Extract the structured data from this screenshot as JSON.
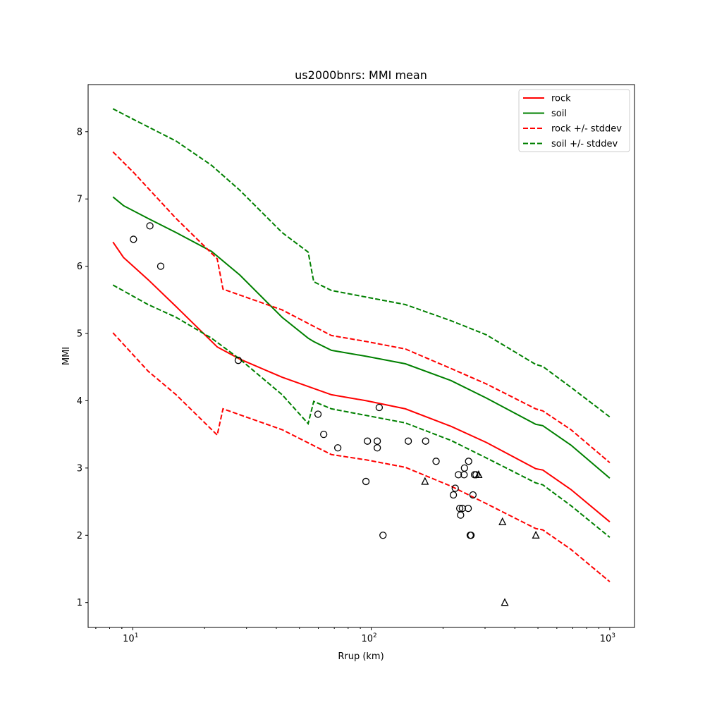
{
  "chart_data": {
    "type": "line",
    "title": "us2000bnrs: MMI mean",
    "xlabel": "Rrup (km)",
    "ylabel": "MMI",
    "xscale": "log",
    "xlim": [
      6.5,
      1270
    ],
    "ylim": [
      0.63,
      8.7
    ],
    "xticks": [
      {
        "value": 10,
        "base": "10",
        "exp": "1"
      },
      {
        "value": 100,
        "base": "10",
        "exp": "2"
      },
      {
        "value": 1000,
        "base": "10",
        "exp": "3"
      }
    ],
    "yticks": [
      1,
      2,
      3,
      4,
      5,
      6,
      7,
      8
    ],
    "legend_position": "top-right",
    "series": [
      {
        "name": "rock",
        "color": "#ff0000",
        "style": "solid",
        "x": [
          8.26,
          9.15,
          11.6,
          15.2,
          22.6,
          28.1,
          42.3,
          68.1,
          95.7,
          139,
          216,
          304,
          489,
          524,
          688,
          1000
        ],
        "y": [
          6.36,
          6.13,
          5.8,
          5.4,
          4.8,
          4.62,
          4.35,
          4.09,
          4.0,
          3.88,
          3.62,
          3.38,
          2.99,
          2.97,
          2.68,
          2.2
        ]
      },
      {
        "name": "soil",
        "color": "#008000",
        "style": "solid",
        "x": [
          8.26,
          9.15,
          11.6,
          15.2,
          21.4,
          28.1,
          42.3,
          54.4,
          57.4,
          68.1,
          95.7,
          139,
          216,
          304,
          489,
          524,
          688,
          1000
        ],
        "y": [
          7.03,
          6.9,
          6.71,
          6.5,
          6.22,
          5.87,
          5.24,
          4.93,
          4.88,
          4.75,
          4.66,
          4.55,
          4.3,
          4.04,
          3.65,
          3.63,
          3.34,
          2.85
        ]
      },
      {
        "name": "rock +/- stddev",
        "color": "#ff0000",
        "style": "dashed",
        "x": [
          8.26,
          10.1,
          15.2,
          22.6,
          23.9,
          42.3,
          68.1,
          95.7,
          139,
          216,
          304,
          489,
          524,
          688,
          1000
        ],
        "y": [
          7.7,
          7.39,
          6.71,
          6.11,
          5.66,
          5.35,
          4.97,
          4.88,
          4.77,
          4.48,
          4.25,
          3.88,
          3.85,
          3.57,
          3.08
        ]
      },
      {
        "name": "rock - stddev",
        "color": "#ff0000",
        "style": "dashed",
        "legend": false,
        "x": [
          8.26,
          11.6,
          15.2,
          22.6,
          23.9,
          42.3,
          68.1,
          95.7,
          139,
          216,
          304,
          489,
          524,
          688,
          1000
        ],
        "y": [
          5.01,
          4.44,
          4.09,
          3.49,
          3.88,
          3.57,
          3.2,
          3.12,
          3.01,
          2.73,
          2.47,
          2.1,
          2.08,
          1.79,
          1.31
        ]
      },
      {
        "name": "soil +/- stddev",
        "color": "#008000",
        "style": "dashed",
        "x": [
          8.26,
          10.1,
          15.2,
          21.4,
          28.1,
          42.3,
          54.4,
          57.4,
          68.1,
          139,
          216,
          304,
          489,
          524,
          688,
          1000
        ],
        "y": [
          8.34,
          8.18,
          7.86,
          7.5,
          7.13,
          6.5,
          6.21,
          5.77,
          5.64,
          5.43,
          5.19,
          4.98,
          4.54,
          4.51,
          4.2,
          3.76
        ]
      },
      {
        "name": "soil - stddev",
        "color": "#008000",
        "style": "dashed",
        "legend": false,
        "x": [
          8.26,
          11.6,
          15.2,
          21.4,
          28.1,
          42.3,
          54.4,
          57.4,
          68.1,
          95.7,
          139,
          216,
          304,
          489,
          524,
          688,
          1000
        ],
        "y": [
          5.72,
          5.43,
          5.24,
          4.93,
          4.62,
          4.09,
          3.66,
          3.99,
          3.88,
          3.78,
          3.67,
          3.41,
          3.15,
          2.78,
          2.75,
          2.44,
          1.97
        ]
      }
    ],
    "scatter_circles": {
      "x": [
        10.07,
        11.8,
        13.1,
        27.7,
        59.8,
        63.2,
        72.4,
        108,
        96.4,
        106,
        106,
        143,
        169,
        95,
        112,
        187,
        256,
        246,
        232,
        245,
        271,
        275,
        225,
        221,
        267,
        235,
        241,
        255,
        237,
        260,
        262
      ],
      "y": [
        6.4,
        6.6,
        6.0,
        4.6,
        3.8,
        3.5,
        3.3,
        3.9,
        3.4,
        3.4,
        3.3,
        3.4,
        3.4,
        2.8,
        2.0,
        3.1,
        3.1,
        3.0,
        2.9,
        2.9,
        2.9,
        2.9,
        2.7,
        2.6,
        2.6,
        2.4,
        2.4,
        2.4,
        2.3,
        2.0,
        2.0
      ]
    },
    "scatter_triangles": {
      "x": [
        168,
        282,
        355,
        490,
        363
      ],
      "y": [
        2.8,
        2.9,
        2.2,
        2.0,
        1.0
      ]
    }
  }
}
